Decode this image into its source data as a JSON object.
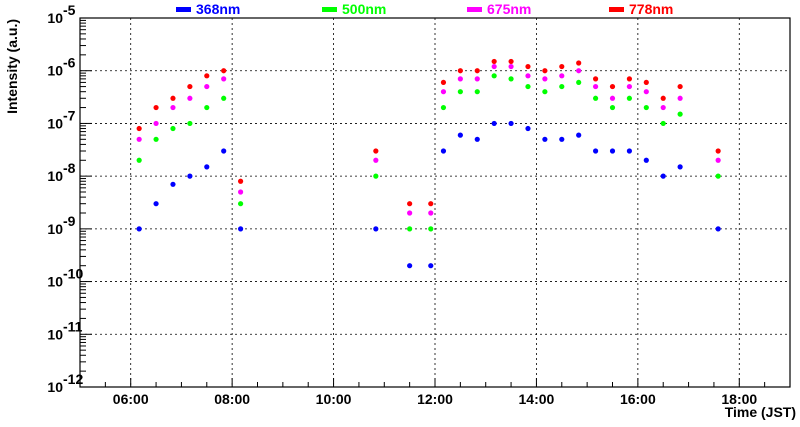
{
  "chart_data": {
    "type": "scatter",
    "title": "",
    "xlabel": "Time (JST)",
    "ylabel": "Intensity (a.u.)",
    "x_scale": "time",
    "y_scale": "log",
    "xlim": [
      "05:00",
      "19:00"
    ],
    "ylim": [
      1e-12,
      1e-05
    ],
    "grid": true,
    "legend_placement": "top",
    "x_ticks": [
      "06:00",
      "08:00",
      "10:00",
      "12:00",
      "14:00",
      "16:00",
      "18:00"
    ],
    "y_ticks": [
      {
        "base": "10",
        "exp": "-12"
      },
      {
        "base": "10",
        "exp": "-11"
      },
      {
        "base": "10",
        "exp": "-10"
      },
      {
        "base": "10",
        "exp": "-9"
      },
      {
        "base": "10",
        "exp": "-8"
      },
      {
        "base": "10",
        "exp": "-7"
      },
      {
        "base": "10",
        "exp": "-6"
      },
      {
        "base": "10",
        "exp": "-5"
      }
    ],
    "series": [
      {
        "name": "368nm",
        "color": "#0000ff",
        "x": [
          "06:10",
          "06:30",
          "06:50",
          "07:10",
          "07:30",
          "07:50",
          "08:10",
          "10:50",
          "11:30",
          "11:55",
          "12:10",
          "12:30",
          "12:50",
          "13:10",
          "13:30",
          "13:50",
          "14:10",
          "14:30",
          "14:50",
          "15:10",
          "15:30",
          "15:50",
          "16:10",
          "16:30",
          "16:50",
          "17:35"
        ],
        "y": [
          1e-09,
          3e-09,
          7e-09,
          1e-08,
          1.5e-08,
          3e-08,
          1e-09,
          1e-09,
          2e-10,
          2e-10,
          3e-08,
          6e-08,
          5e-08,
          1e-07,
          1e-07,
          8e-08,
          5e-08,
          5e-08,
          6e-08,
          3e-08,
          3e-08,
          3e-08,
          2e-08,
          1e-08,
          1.5e-08,
          1e-09
        ]
      },
      {
        "name": "500nm",
        "color": "#00ff00",
        "x": [
          "06:10",
          "06:30",
          "06:50",
          "07:10",
          "07:30",
          "07:50",
          "08:10",
          "10:50",
          "11:30",
          "11:55",
          "12:10",
          "12:30",
          "12:50",
          "13:10",
          "13:30",
          "13:50",
          "14:10",
          "14:30",
          "14:50",
          "15:10",
          "15:30",
          "15:50",
          "16:10",
          "16:30",
          "16:50",
          "17:35"
        ],
        "y": [
          2e-08,
          5e-08,
          8e-08,
          1e-07,
          2e-07,
          3e-07,
          3e-09,
          1e-08,
          1e-09,
          1e-09,
          2e-07,
          4e-07,
          4e-07,
          8e-07,
          7e-07,
          5e-07,
          4e-07,
          5e-07,
          6e-07,
          3e-07,
          2e-07,
          3e-07,
          2e-07,
          1e-07,
          1.5e-07,
          1e-08
        ]
      },
      {
        "name": "675nm",
        "color": "#ff00ff",
        "x": [
          "06:10",
          "06:30",
          "06:50",
          "07:10",
          "07:30",
          "07:50",
          "08:10",
          "10:50",
          "11:30",
          "11:55",
          "12:10",
          "12:30",
          "12:50",
          "13:10",
          "13:30",
          "13:50",
          "14:10",
          "14:30",
          "14:50",
          "15:10",
          "15:30",
          "15:50",
          "16:10",
          "16:30",
          "16:50",
          "17:35"
        ],
        "y": [
          5e-08,
          1e-07,
          2e-07,
          3e-07,
          5e-07,
          7e-07,
          5e-09,
          2e-08,
          2e-09,
          2e-09,
          4e-07,
          7e-07,
          7e-07,
          1.2e-06,
          1.2e-06,
          8e-07,
          7e-07,
          8e-07,
          1e-06,
          5e-07,
          3e-07,
          5e-07,
          4e-07,
          2e-07,
          3e-07,
          2e-08
        ]
      },
      {
        "name": "778nm",
        "color": "#ff0000",
        "x": [
          "06:10",
          "06:30",
          "06:50",
          "07:10",
          "07:30",
          "07:50",
          "08:10",
          "10:50",
          "11:30",
          "11:55",
          "12:10",
          "12:30",
          "12:50",
          "13:10",
          "13:30",
          "13:50",
          "14:10",
          "14:30",
          "14:50",
          "15:10",
          "15:30",
          "15:50",
          "16:10",
          "16:30",
          "16:50",
          "17:35"
        ],
        "y": [
          8e-08,
          2e-07,
          3e-07,
          5e-07,
          8e-07,
          1e-06,
          8e-09,
          3e-08,
          3e-09,
          3e-09,
          6e-07,
          1e-06,
          1e-06,
          1.5e-06,
          1.5e-06,
          1.2e-06,
          1e-06,
          1.2e-06,
          1.4e-06,
          7e-07,
          5e-07,
          7e-07,
          6e-07,
          3e-07,
          5e-07,
          3e-08
        ]
      }
    ]
  }
}
